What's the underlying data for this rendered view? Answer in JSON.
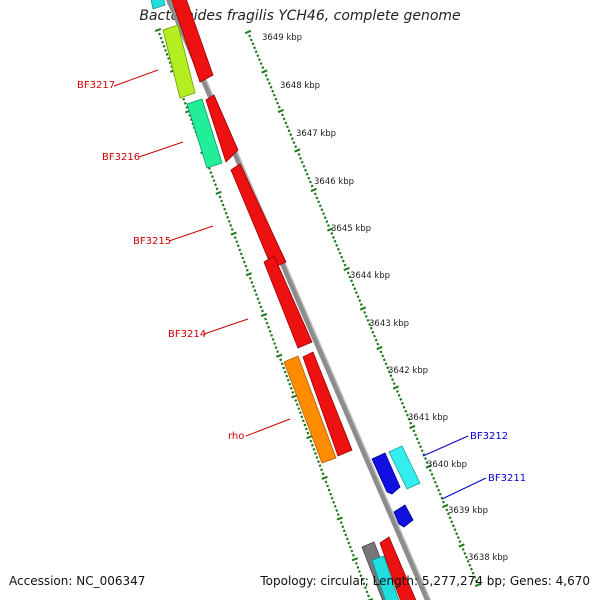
{
  "title": "Bacteroides fragilis YCH46, complete genome",
  "footer": {
    "accession": "Accession: NC_006347",
    "summary": "Topology: circular; Length: 5,277,274 bp; Genes: 4,670"
  },
  "colors": {
    "forward_label": "#cc0000",
    "reverse_label": "#0000cc",
    "backbone": "#8c8c8c",
    "ticks": "#1a7a1a"
  },
  "ruler": {
    "unit": "kbp",
    "ticks": [
      {
        "kbp": 3649,
        "label": "3649 kbp"
      },
      {
        "kbp": 3648,
        "label": "3648 kbp"
      },
      {
        "kbp": 3647,
        "label": "3647 kbp"
      },
      {
        "kbp": 3646,
        "label": "3646 kbp"
      },
      {
        "kbp": 3645,
        "label": "3645 kbp"
      },
      {
        "kbp": 3644,
        "label": "3644 kbp"
      },
      {
        "kbp": 3643,
        "label": "3643 kbp"
      },
      {
        "kbp": 3642,
        "label": "3642 kbp"
      },
      {
        "kbp": 3641,
        "label": "3641 kbp"
      },
      {
        "kbp": 3640,
        "label": "3640 kbp"
      },
      {
        "kbp": 3639,
        "label": "3639 kbp"
      },
      {
        "kbp": 3638,
        "label": "3638 kbp"
      }
    ]
  },
  "gene_labels": [
    {
      "name": "BF3217",
      "strand": "forward"
    },
    {
      "name": "BF3216",
      "strand": "forward"
    },
    {
      "name": "BF3215",
      "strand": "forward"
    },
    {
      "name": "BF3214",
      "strand": "forward"
    },
    {
      "name": "rho",
      "strand": "forward"
    },
    {
      "name": "BF3212",
      "strand": "reverse"
    },
    {
      "name": "BF3211",
      "strand": "reverse"
    }
  ]
}
